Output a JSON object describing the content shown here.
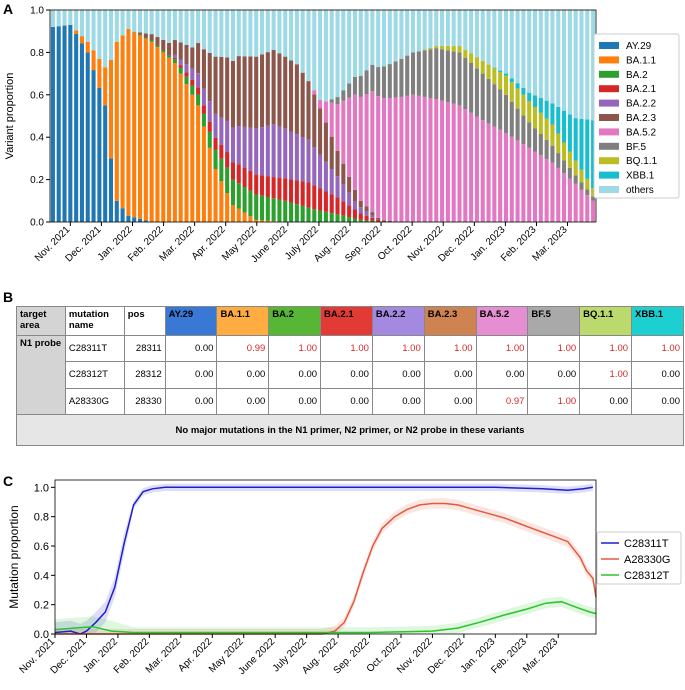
{
  "panels": {
    "a": "A",
    "b": "B",
    "c": "C"
  },
  "chart_data": [
    {
      "type": "bar",
      "stacked": true,
      "ylabel": "Variant proportion",
      "ylim": [
        0,
        1.0
      ],
      "yticks": [
        "0.0",
        "0.2",
        "0.4",
        "0.6",
        "0.8",
        "1.0"
      ],
      "xtick_labels": [
        "Nov. 2021",
        "Dec. 2021",
        "Jan. 2022",
        "Feb. 2022",
        "Mar. 2022",
        "Apr. 2022",
        "May 2022",
        "June 2022",
        "July 2022",
        "Aug. 2022",
        "Sep. 2022",
        "Oct. 2022",
        "Nov. 2022",
        "Dec. 2022",
        "Jan. 2023",
        "Feb. 2023",
        "Mar. 2023"
      ],
      "legend_position": "right",
      "n_bars": 94,
      "series": [
        {
          "name": "AY.29",
          "color": "#1f77b4",
          "keypoints": [
            [
              0,
              0.92
            ],
            [
              3,
              0.93
            ],
            [
              6,
              0.8
            ],
            [
              9,
              0.55
            ],
            [
              10,
              0.3
            ],
            [
              11,
              0.1
            ],
            [
              13,
              0.03
            ],
            [
              17,
              0.0
            ]
          ]
        },
        {
          "name": "BA.1.1",
          "color": "#ff7f0e",
          "keypoints": [
            [
              0,
              0.0
            ],
            [
              3,
              0.0
            ],
            [
              6,
              0.05
            ],
            [
              9,
              0.18
            ],
            [
              11,
              0.75
            ],
            [
              13,
              0.88
            ],
            [
              17,
              0.85
            ],
            [
              21,
              0.75
            ],
            [
              25,
              0.55
            ],
            [
              28,
              0.25
            ],
            [
              31,
              0.08
            ],
            [
              35,
              0.01
            ],
            [
              40,
              0.0
            ]
          ]
        },
        {
          "name": "BA.2",
          "color": "#2ca02c",
          "keypoints": [
            [
              0,
              0.0
            ],
            [
              12,
              0.0
            ],
            [
              20,
              0.01
            ],
            [
              26,
              0.06
            ],
            [
              30,
              0.12
            ],
            [
              35,
              0.12
            ],
            [
              40,
              0.1
            ],
            [
              45,
              0.06
            ],
            [
              50,
              0.03
            ],
            [
              53,
              0.01
            ],
            [
              57,
              0.0
            ]
          ]
        },
        {
          "name": "BA.2.1",
          "color": "#d62728",
          "keypoints": [
            [
              0,
              0.0
            ],
            [
              20,
              0.0
            ],
            [
              26,
              0.04
            ],
            [
              32,
              0.09
            ],
            [
              38,
              0.1
            ],
            [
              44,
              0.12
            ],
            [
              49,
              0.08
            ],
            [
              53,
              0.03
            ],
            [
              57,
              0.0
            ]
          ]
        },
        {
          "name": "BA.2.2",
          "color": "#9467bd",
          "keypoints": [
            [
              0,
              0.0
            ],
            [
              20,
              0.0
            ],
            [
              26,
              0.08
            ],
            [
              32,
              0.18
            ],
            [
              38,
              0.25
            ],
            [
              44,
              0.2
            ],
            [
              48,
              0.12
            ],
            [
              52,
              0.04
            ],
            [
              56,
              0.0
            ]
          ]
        },
        {
          "name": "BA.2.3",
          "color": "#8c564b",
          "keypoints": [
            [
              0,
              0.0
            ],
            [
              14,
              0.0
            ],
            [
              18,
              0.04
            ],
            [
              24,
              0.1
            ],
            [
              28,
              0.27
            ],
            [
              32,
              0.33
            ],
            [
              38,
              0.35
            ],
            [
              42,
              0.33
            ],
            [
              45,
              0.25
            ],
            [
              49,
              0.12
            ],
            [
              53,
              0.03
            ],
            [
              56,
              0.01
            ],
            [
              60,
              0.0
            ]
          ]
        },
        {
          "name": "BA.5.2",
          "color": "#e377c2",
          "keypoints": [
            [
              0,
              0.0
            ],
            [
              44,
              0.0
            ],
            [
              46,
              0.04
            ],
            [
              49,
              0.22
            ],
            [
              52,
              0.45
            ],
            [
              55,
              0.57
            ],
            [
              58,
              0.58
            ],
            [
              62,
              0.6
            ],
            [
              66,
              0.58
            ],
            [
              70,
              0.55
            ],
            [
              74,
              0.48
            ],
            [
              78,
              0.42
            ],
            [
              82,
              0.35
            ],
            [
              86,
              0.28
            ],
            [
              90,
              0.18
            ],
            [
              93,
              0.1
            ]
          ]
        },
        {
          "name": "BF.5",
          "color": "#7f7f7f",
          "keypoints": [
            [
              0,
              0.0
            ],
            [
              47,
              0.0
            ],
            [
              50,
              0.05
            ],
            [
              53,
              0.1
            ],
            [
              57,
              0.15
            ],
            [
              62,
              0.2
            ],
            [
              66,
              0.24
            ],
            [
              70,
              0.25
            ],
            [
              74,
              0.22
            ],
            [
              78,
              0.18
            ],
            [
              82,
              0.12
            ],
            [
              86,
              0.08
            ],
            [
              90,
              0.04
            ],
            [
              93,
              0.02
            ]
          ]
        },
        {
          "name": "BQ.1.1",
          "color": "#bcbd22",
          "keypoints": [
            [
              0,
              0.0
            ],
            [
              63,
              0.0
            ],
            [
              66,
              0.01
            ],
            [
              70,
              0.03
            ],
            [
              74,
              0.06
            ],
            [
              78,
              0.09
            ],
            [
              82,
              0.1
            ],
            [
              86,
              0.1
            ],
            [
              90,
              0.07
            ],
            [
              93,
              0.04
            ]
          ]
        },
        {
          "name": "XBB.1",
          "color": "#17becf",
          "keypoints": [
            [
              0,
              0.0
            ],
            [
              75,
              0.0
            ],
            [
              78,
              0.01
            ],
            [
              82,
              0.04
            ],
            [
              86,
              0.1
            ],
            [
              90,
              0.2
            ],
            [
              93,
              0.32
            ]
          ]
        },
        {
          "name": "others",
          "color": "#9edae5",
          "keypoints": "remainder to 1.0"
        }
      ]
    },
    {
      "type": "table",
      "columns": [
        "target area",
        "mutation name",
        "pos",
        "AY.29",
        "BA.1.1",
        "BA.2",
        "BA.2.1",
        "BA.2.2",
        "BA.2.3",
        "BA.5.2",
        "BF.5",
        "BQ.1.1",
        "XBB.1"
      ],
      "variant_colors": [
        "#3a78d6",
        "#ffad42",
        "#58b636",
        "#e23a34",
        "#a38ae0",
        "#cf8350",
        "#e58ed1",
        "#a9a9a9",
        "#bcd96e",
        "#1ccfd1"
      ],
      "group": "N1 probe",
      "rows": [
        {
          "mutation": "C28311T",
          "pos": "28311",
          "values": [
            "0.00",
            "0.99",
            "1.00",
            "1.00",
            "1.00",
            "1.00",
            "1.00",
            "1.00",
            "1.00",
            "1.00"
          ],
          "highlight": [
            false,
            true,
            true,
            true,
            true,
            true,
            true,
            true,
            true,
            true
          ]
        },
        {
          "mutation": "C28312T",
          "pos": "28312",
          "values": [
            "0.00",
            "0.00",
            "0.00",
            "0.00",
            "0.00",
            "0.00",
            "0.00",
            "0.00",
            "1.00",
            "0.00"
          ],
          "highlight": [
            false,
            false,
            false,
            false,
            false,
            false,
            false,
            false,
            true,
            false
          ]
        },
        {
          "mutation": "A28330G",
          "pos": "28330",
          "values": [
            "0.00",
            "0.00",
            "0.00",
            "0.00",
            "0.00",
            "0.00",
            "0.97",
            "1.00",
            "0.00",
            "0.00"
          ],
          "highlight": [
            false,
            false,
            false,
            false,
            false,
            false,
            true,
            true,
            false,
            false
          ]
        }
      ],
      "footnote": "No major mutations in the N1 primer, N2 primer, or N2 probe in these variants"
    },
    {
      "type": "line",
      "ylabel": "Mutation proportion",
      "ylim": [
        0,
        1.05
      ],
      "yticks": [
        "0.0",
        "0.2",
        "0.4",
        "0.6",
        "0.8",
        "1.0"
      ],
      "xtick_labels": [
        "Nov. 2021",
        "Dec. 2021",
        "Jan. 2022",
        "Feb. 2022",
        "Mar. 2022",
        "Apr. 2022",
        "May 2022",
        "June 2022",
        "July 2022",
        "Aug. 2022",
        "Sep. 2022",
        "Oct. 2022",
        "Nov. 2022",
        "Dec. 2022",
        "Jan. 2023",
        "Feb. 2023",
        "Mar. 2023"
      ],
      "x_range": [
        0,
        17.2
      ],
      "legend_position": "right",
      "series": [
        {
          "name": "C28311T",
          "color": "#1f1fcf",
          "points": [
            [
              0,
              0.01
            ],
            [
              0.5,
              0.02
            ],
            [
              0.8,
              0.0
            ],
            [
              1.0,
              0.02
            ],
            [
              1.3,
              0.08
            ],
            [
              1.6,
              0.15
            ],
            [
              1.9,
              0.32
            ],
            [
              2.2,
              0.62
            ],
            [
              2.5,
              0.88
            ],
            [
              2.8,
              0.97
            ],
            [
              3.1,
              0.99
            ],
            [
              3.5,
              1.0
            ],
            [
              6,
              1.0
            ],
            [
              10,
              1.0
            ],
            [
              14,
              1.0
            ],
            [
              15.5,
              0.99
            ],
            [
              16.3,
              0.98
            ],
            [
              16.8,
              0.99
            ],
            [
              17.1,
              1.0
            ]
          ]
        },
        {
          "name": "A28330G",
          "color": "#e45a3c",
          "points": [
            [
              0,
              0.0
            ],
            [
              8.5,
              0.0
            ],
            [
              8.9,
              0.02
            ],
            [
              9.2,
              0.08
            ],
            [
              9.5,
              0.22
            ],
            [
              9.8,
              0.42
            ],
            [
              10.1,
              0.6
            ],
            [
              10.4,
              0.72
            ],
            [
              10.8,
              0.8
            ],
            [
              11.2,
              0.85
            ],
            [
              11.6,
              0.88
            ],
            [
              12.0,
              0.89
            ],
            [
              12.4,
              0.89
            ],
            [
              12.8,
              0.88
            ],
            [
              13.3,
              0.85
            ],
            [
              13.8,
              0.82
            ],
            [
              14.3,
              0.79
            ],
            [
              14.8,
              0.75
            ],
            [
              15.3,
              0.71
            ],
            [
              15.8,
              0.67
            ],
            [
              16.3,
              0.63
            ],
            [
              16.7,
              0.52
            ],
            [
              16.9,
              0.43
            ],
            [
              17.1,
              0.38
            ],
            [
              17.2,
              0.25
            ]
          ]
        },
        {
          "name": "C28312T",
          "color": "#2bc42b",
          "points": [
            [
              0,
              0.03
            ],
            [
              0.6,
              0.04
            ],
            [
              1.2,
              0.05
            ],
            [
              1.8,
              0.02
            ],
            [
              2.5,
              0.01
            ],
            [
              5,
              0.01
            ],
            [
              8,
              0.01
            ],
            [
              10,
              0.01
            ],
            [
              12,
              0.02
            ],
            [
              12.8,
              0.04
            ],
            [
              13.5,
              0.08
            ],
            [
              14.3,
              0.13
            ],
            [
              15,
              0.17
            ],
            [
              15.6,
              0.21
            ],
            [
              16.1,
              0.22
            ],
            [
              16.6,
              0.18
            ],
            [
              17.0,
              0.15
            ],
            [
              17.2,
              0.14
            ]
          ]
        }
      ]
    }
  ]
}
